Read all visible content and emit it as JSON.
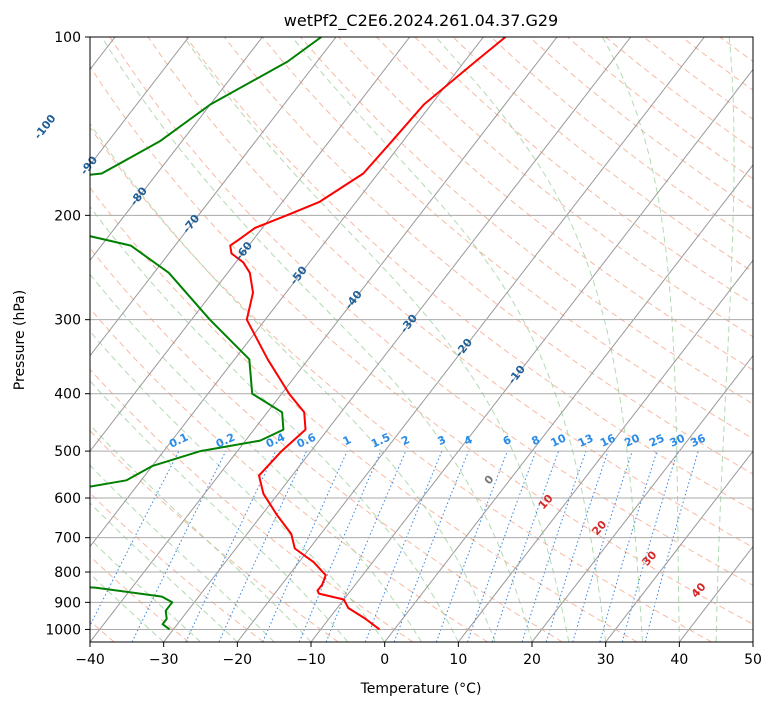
{
  "chart_data": {
    "type": "line",
    "title": "wetPf2_C2E6.2024.261.04.37.G29",
    "xlabel": "Temperature (°C)",
    "ylabel": "Pressure (hPa)",
    "xlim": [
      -40,
      50
    ],
    "ylim": [
      1050,
      100
    ],
    "y_scale": "log",
    "grid": true,
    "xticks": [
      -40,
      -30,
      -20,
      -10,
      0,
      10,
      20,
      30,
      40,
      50
    ],
    "yticks": [
      100,
      200,
      300,
      400,
      500,
      600,
      700,
      800,
      900,
      1000
    ],
    "isotherm_labels": [
      "-100",
      "-90",
      "-80",
      "-70",
      "-60",
      "-50",
      "-40",
      "-30",
      "-20",
      "-10"
    ],
    "mixing_ratio_labels": [
      "0.1",
      "0.2",
      "0.4",
      "0.6",
      "1",
      "1.5",
      "2",
      "3",
      "4",
      "6",
      "8",
      "10",
      "13",
      "16",
      "20",
      "25",
      "30",
      "36"
    ],
    "moist_adiabat_labels": [
      "0",
      "10",
      "20",
      "30",
      "40"
    ],
    "series": [
      {
        "color": "#ff0000",
        "p": [
          100,
          110,
          130,
          150,
          170,
          190,
          200,
          210,
          220,
          225,
          232,
          240,
          250,
          270,
          300,
          350,
          400,
          430,
          460,
          500,
          550,
          590,
          640,
          690,
          730,
          770,
          810,
          840,
          860,
          870,
          890,
          920,
          960,
          1000
        ],
        "t": [
          -47,
          -48.5,
          -51,
          -51.5,
          -52,
          -55,
          -58,
          -61,
          -62,
          -62.5,
          -61.5,
          -59,
          -57,
          -54.5,
          -52.5,
          -45.5,
          -39,
          -35,
          -33,
          -34,
          -34.5,
          -32,
          -28,
          -24,
          -22,
          -18,
          -15,
          -14.5,
          -14.5,
          -14,
          -10,
          -8.5,
          -5,
          -2
        ]
      },
      {
        "color": "#008000",
        "p": [
          100,
          110,
          130,
          150,
          170,
          175,
          190,
          200,
          225,
          250,
          300,
          350,
          400,
          430,
          460,
          480,
          500,
          530,
          560,
          600,
          640,
          670,
          700,
          740,
          748,
          760,
          800,
          815,
          822,
          830,
          850,
          880,
          900,
          930,
          960,
          980,
          1000
        ],
        "t": [
          -72,
          -74,
          -80,
          -83,
          -87.5,
          -96,
          -98.5,
          -97,
          -76,
          -68,
          -57.5,
          -48,
          -44,
          -38,
          -36,
          -38,
          -45,
          -50,
          -52,
          -64,
          -74,
          -108,
          -128,
          -65,
          -66,
          -70,
          -60,
          -60,
          -63,
          -63,
          -45,
          -35,
          -33,
          -33,
          -32,
          -32,
          -30.5
        ]
      }
    ]
  }
}
